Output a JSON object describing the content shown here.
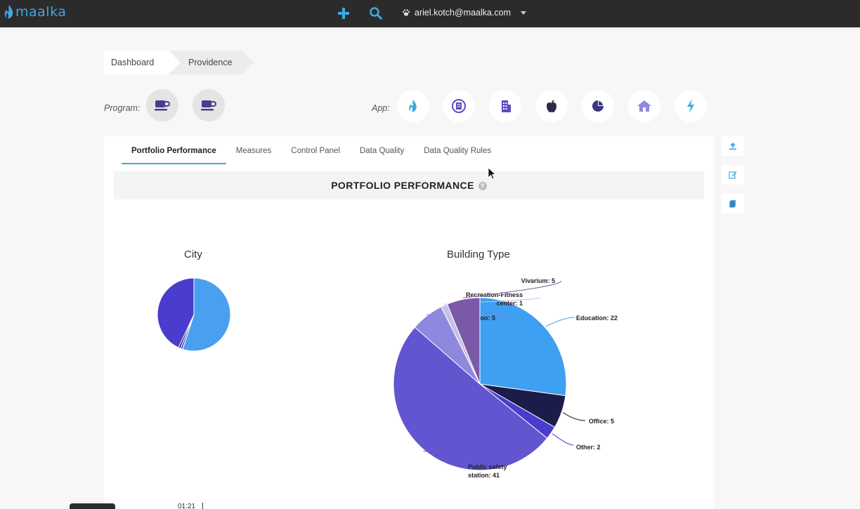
{
  "topbar": {
    "logo_text": "maalka",
    "add_icon": "plus-icon",
    "search_icon": "search-icon",
    "user_icon": "paw-icon",
    "user_email": "ariel.kotch@maalka.com",
    "accent": "#3fa9e0"
  },
  "breadcrumb": {
    "items": [
      {
        "label": "Dashboard"
      },
      {
        "label": "Providence"
      }
    ]
  },
  "program": {
    "label": "Program:",
    "buttons": [
      {
        "icon": "coffee-cup-icon"
      },
      {
        "icon": "coffee-cup-icon"
      }
    ]
  },
  "app": {
    "label": "App:",
    "buttons": [
      {
        "icon": "flame-icon"
      },
      {
        "icon": "building-badge-icon"
      },
      {
        "icon": "office-building-icon"
      },
      {
        "icon": "apple-icon"
      },
      {
        "icon": "pie-chart-icon"
      },
      {
        "icon": "home-icon"
      },
      {
        "icon": "lightning-icon"
      }
    ]
  },
  "tabs": [
    {
      "label": "Portfolio Performance",
      "active": true
    },
    {
      "label": "Measures",
      "active": false
    },
    {
      "label": "Control Panel",
      "active": false
    },
    {
      "label": "Data Quality",
      "active": false
    },
    {
      "label": "Data Quality Rules",
      "active": false
    }
  ],
  "section": {
    "title": "PORTFOLIO PERFORMANCE",
    "help": "?"
  },
  "side_toolbar": [
    {
      "icon": "upload-icon"
    },
    {
      "icon": "edit-icon"
    },
    {
      "icon": "copy-icon"
    }
  ],
  "chart_data": [
    {
      "type": "pie",
      "title": "City",
      "slices": [
        {
          "value": 55,
          "color": "#4a9ff0"
        },
        {
          "value": 1,
          "color": "#5a5ad6"
        },
        {
          "value": 1,
          "color": "#2d2d6e"
        },
        {
          "value": 43,
          "color": "#4a3ccc"
        }
      ]
    },
    {
      "type": "pie",
      "title": "Building Type",
      "slices": [
        {
          "label": "Education: 22",
          "value": 22,
          "color": "#3f9ff0"
        },
        {
          "label": "Office: 5",
          "value": 5,
          "color": "#1c1c4a"
        },
        {
          "label": "Other: 2",
          "value": 2,
          "color": "#4a3ccc"
        },
        {
          "label": "Public safety station: 41",
          "value": 41,
          "color": "#6155d0"
        },
        {
          "label": "Recreation: 5",
          "value": 5,
          "color": "#8f88df"
        },
        {
          "label": "Recreation-Fitness center: 1",
          "value": 1,
          "color": "#c6c0e8"
        },
        {
          "label": "Vivarium: 5",
          "value": 5,
          "color": "#7a5aa8"
        }
      ]
    }
  ],
  "bottom": {
    "timecode": "01:21"
  }
}
